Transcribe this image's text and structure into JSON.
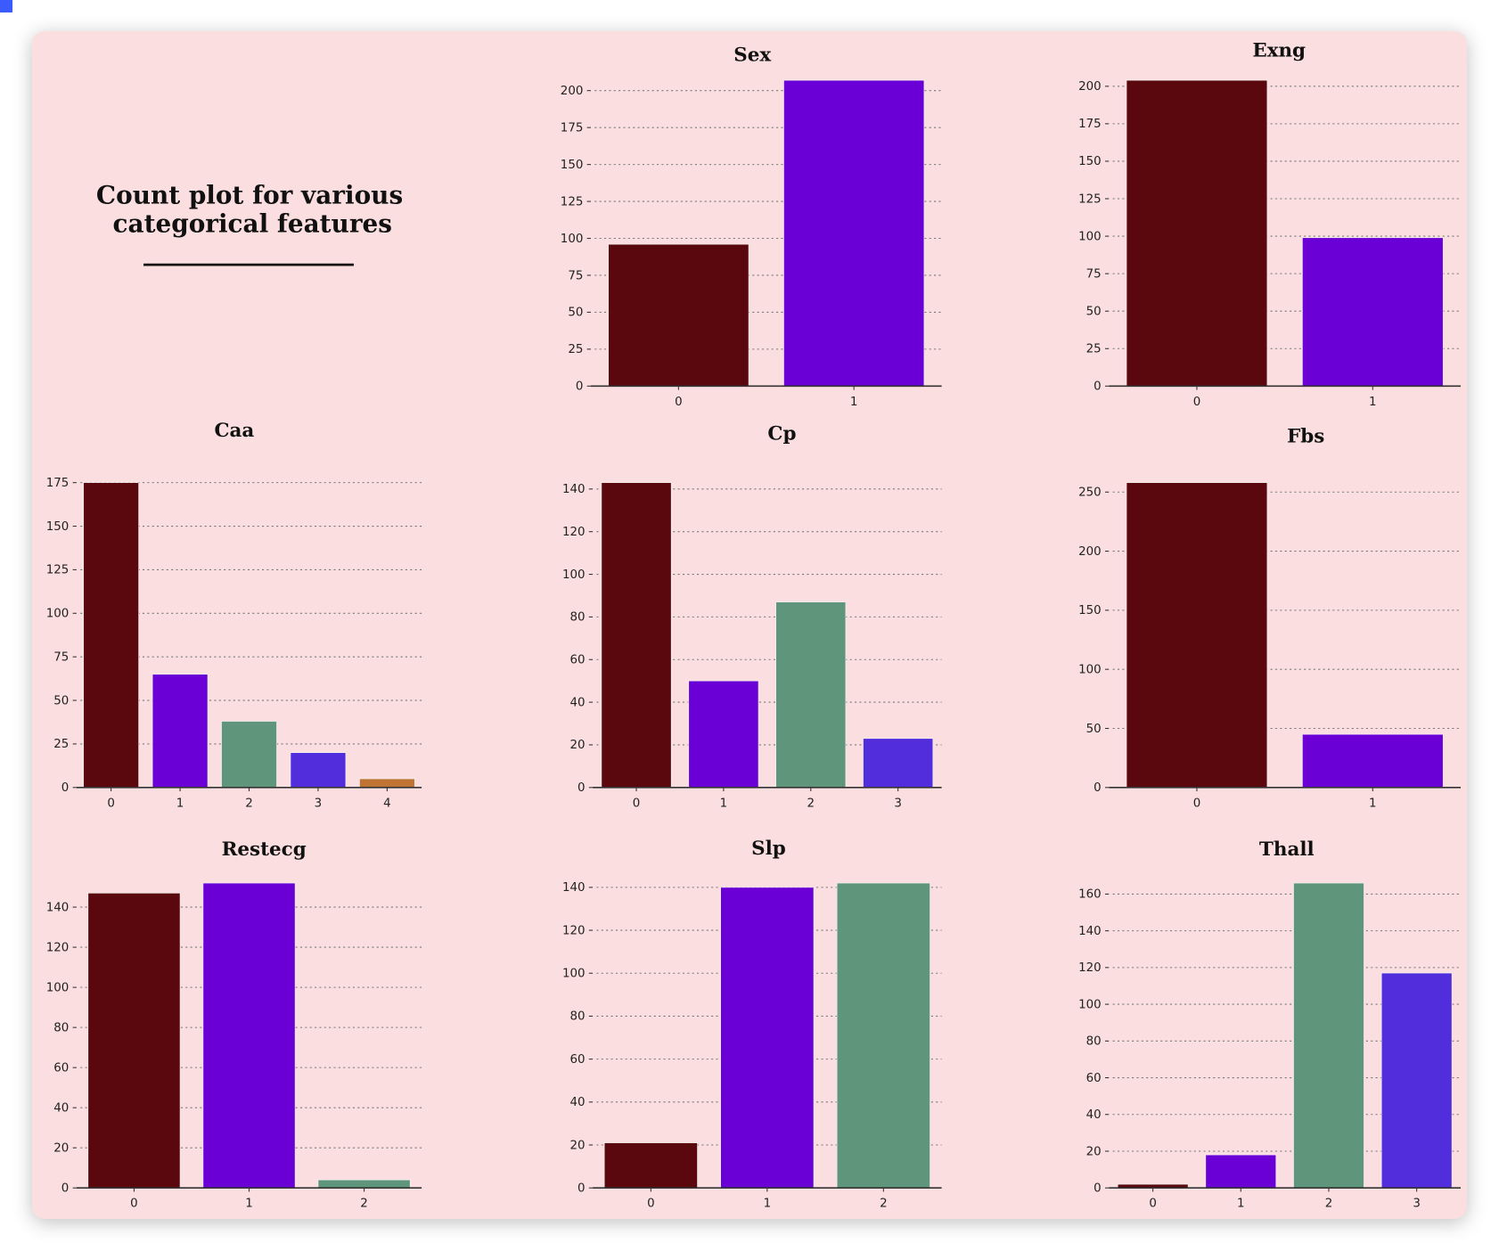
{
  "title": "Count plot for various categorical features",
  "title_lines": [
    "Count plot for various",
    "categorical features"
  ],
  "background": "#fbdfe0",
  "palette": [
    "#5a080e",
    "#6a00d6",
    "#5f957a",
    "#512ddb",
    "#c07433"
  ],
  "chart_data": [
    {
      "type": "bar",
      "title": "Sex",
      "categories": [
        "0",
        "1"
      ],
      "values": [
        96,
        207
      ],
      "yticks": [
        0,
        25,
        50,
        75,
        100,
        125,
        150,
        175,
        200
      ],
      "ylim": [
        0,
        207
      ],
      "grid": "y-dotted"
    },
    {
      "type": "bar",
      "title": "Exng",
      "categories": [
        "0",
        "1"
      ],
      "values": [
        204,
        99
      ],
      "yticks": [
        0,
        25,
        50,
        75,
        100,
        125,
        150,
        175,
        200
      ],
      "ylim": [
        0,
        204
      ],
      "grid": "y-dotted"
    },
    {
      "type": "bar",
      "title": "Caa",
      "categories": [
        "0",
        "1",
        "2",
        "3",
        "4"
      ],
      "values": [
        175,
        65,
        38,
        20,
        5
      ],
      "yticks": [
        0,
        25,
        50,
        75,
        100,
        125,
        150,
        175
      ],
      "ylim": [
        0,
        175
      ],
      "grid": "y-dotted"
    },
    {
      "type": "bar",
      "title": "Cp",
      "categories": [
        "0",
        "1",
        "2",
        "3"
      ],
      "values": [
        143,
        50,
        87,
        23
      ],
      "yticks": [
        0,
        20,
        40,
        60,
        80,
        100,
        120,
        140
      ],
      "ylim": [
        0,
        143
      ],
      "grid": "y-dotted"
    },
    {
      "type": "bar",
      "title": "Fbs",
      "categories": [
        "0",
        "1"
      ],
      "values": [
        258,
        45
      ],
      "yticks": [
        0,
        50,
        100,
        150,
        200,
        250
      ],
      "ylim": [
        0,
        258
      ],
      "grid": "y-dotted"
    },
    {
      "type": "bar",
      "title": "Restecg",
      "categories": [
        "0",
        "1",
        "2"
      ],
      "values": [
        147,
        152,
        4
      ],
      "yticks": [
        0,
        20,
        40,
        60,
        80,
        100,
        120,
        140
      ],
      "ylim": [
        0,
        152
      ],
      "grid": "y-dotted"
    },
    {
      "type": "bar",
      "title": "Slp",
      "categories": [
        "0",
        "1",
        "2"
      ],
      "values": [
        21,
        140,
        142
      ],
      "yticks": [
        0,
        20,
        40,
        60,
        80,
        100,
        120,
        140
      ],
      "ylim": [
        0,
        142
      ],
      "grid": "y-dotted"
    },
    {
      "type": "bar",
      "title": "Thall",
      "categories": [
        "0",
        "1",
        "2",
        "3"
      ],
      "values": [
        2,
        18,
        166,
        117
      ],
      "yticks": [
        0,
        20,
        40,
        60,
        80,
        100,
        120,
        140,
        160
      ],
      "ylim": [
        0,
        166
      ],
      "grid": "y-dotted"
    }
  ]
}
